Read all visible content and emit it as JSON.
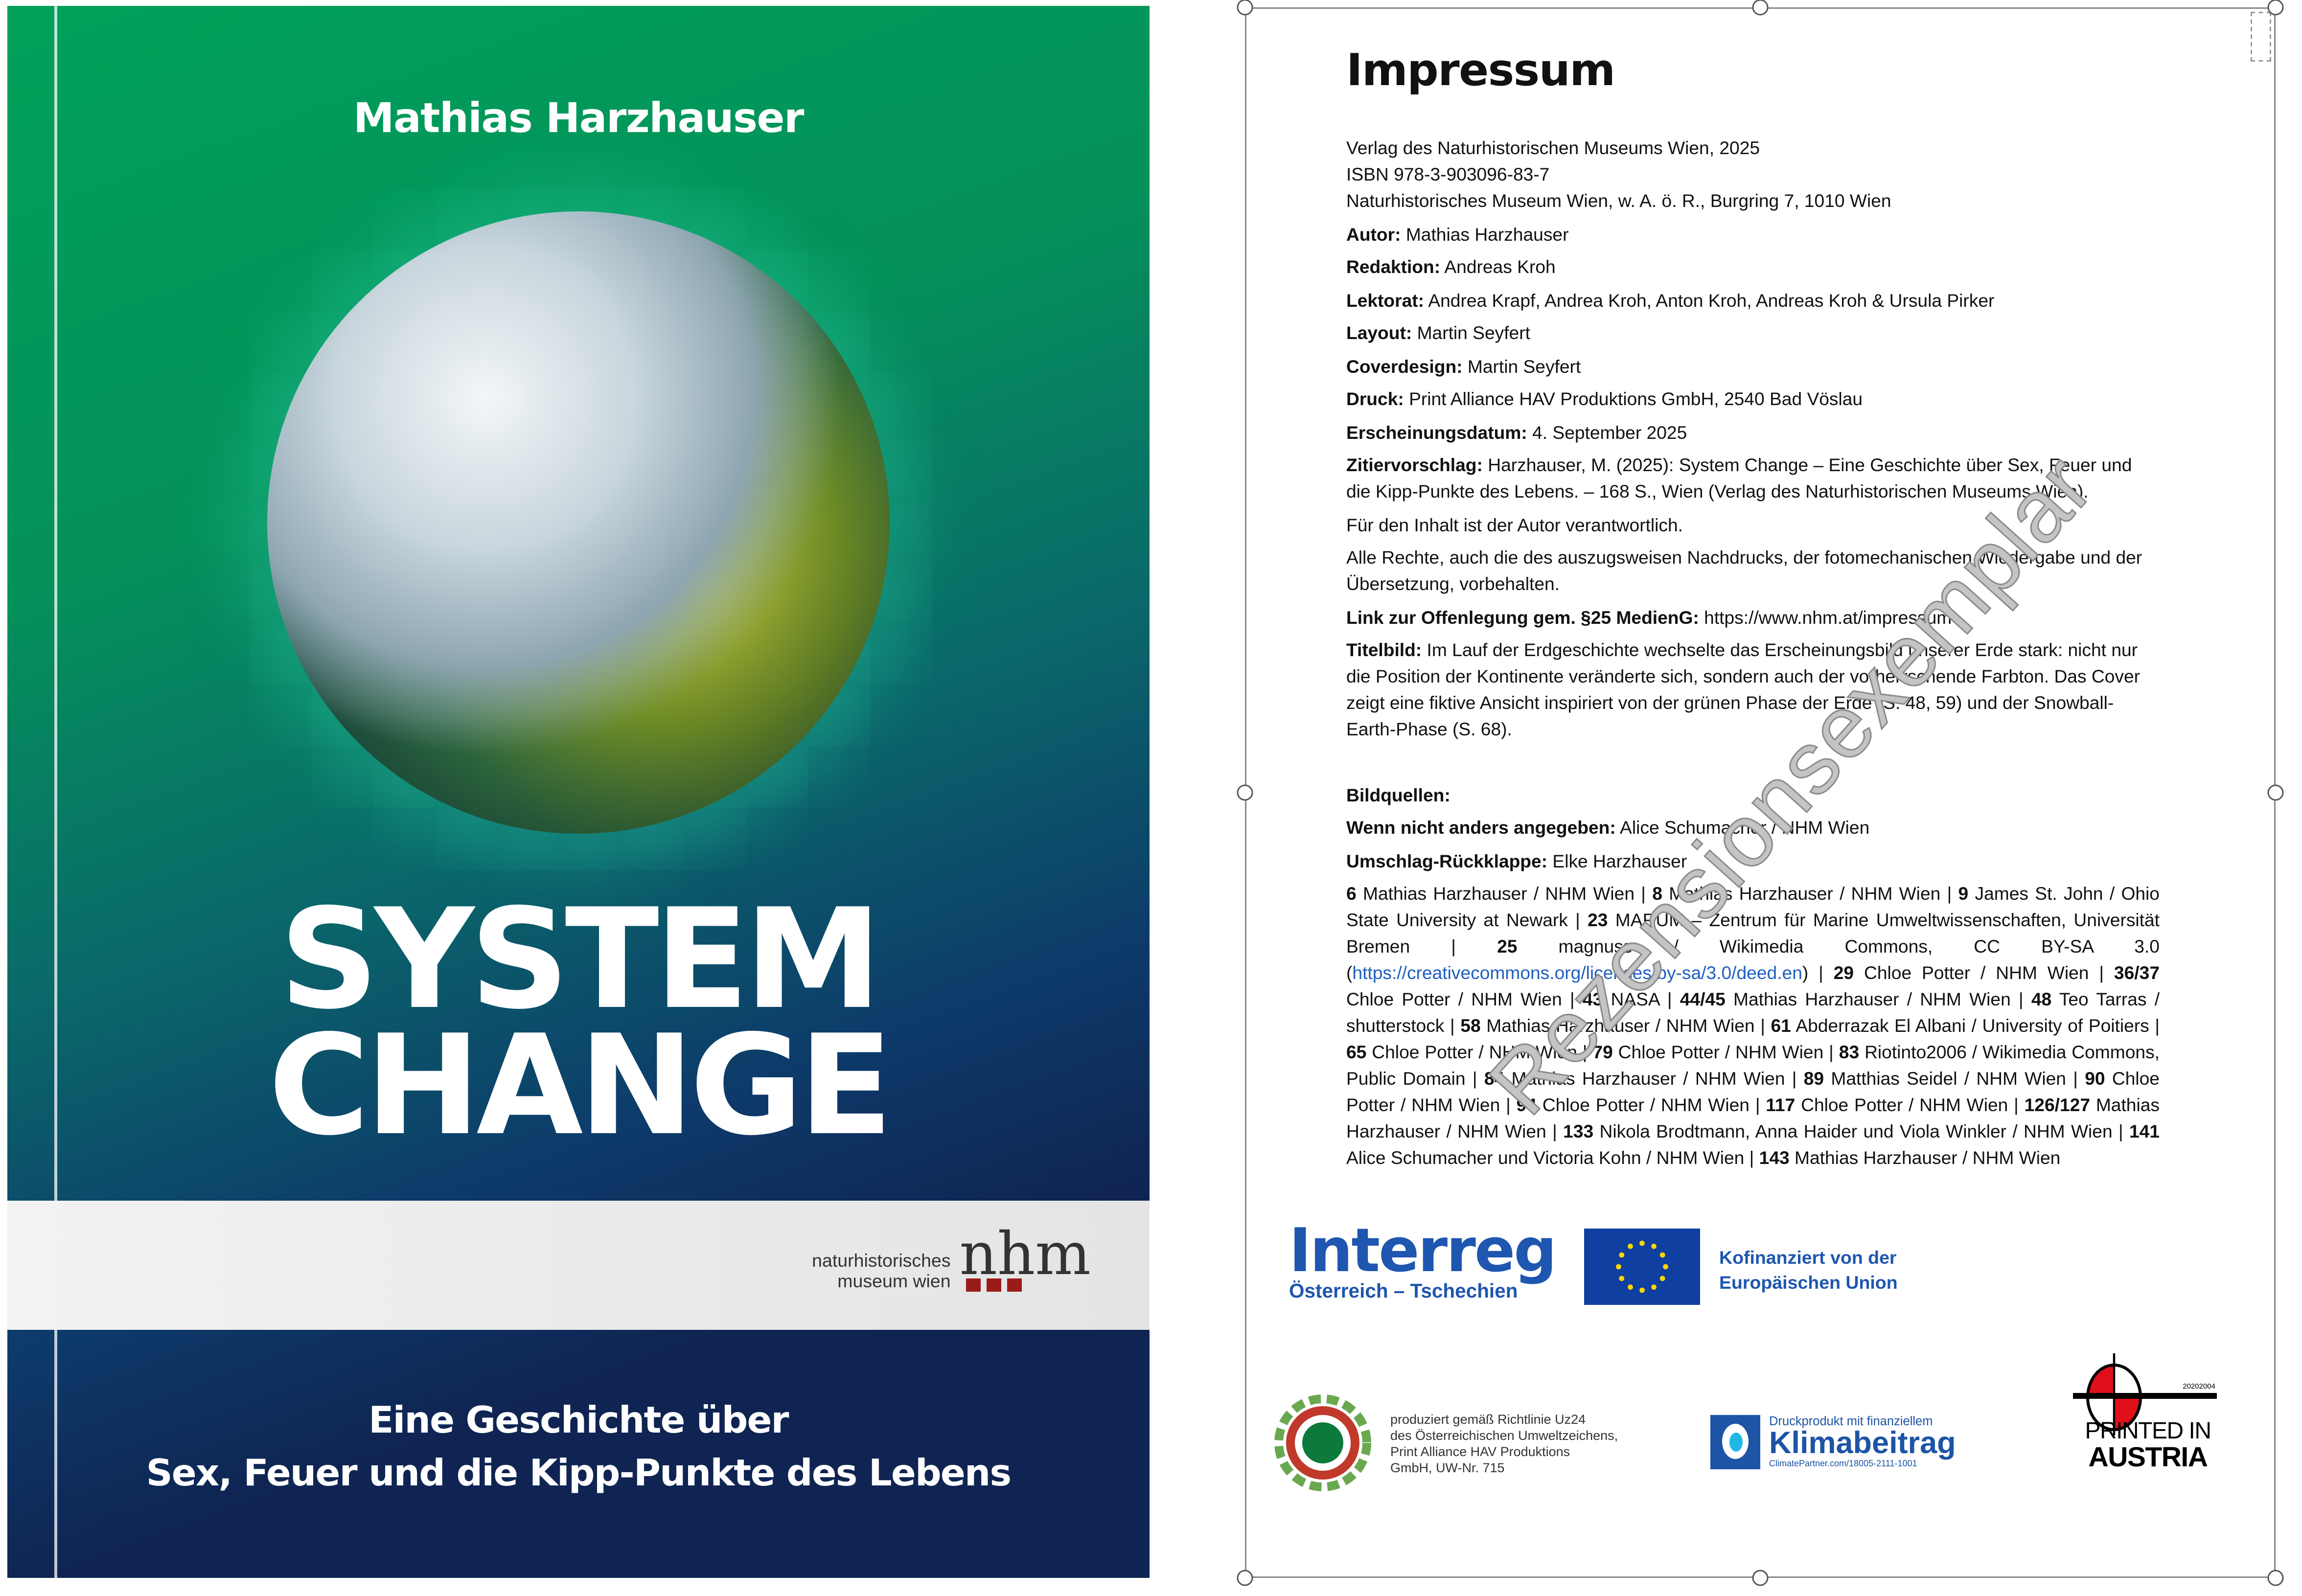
{
  "cover": {
    "author": "Mathias Harzhauser",
    "title_line1": "SYSTEM",
    "title_line2": "CHANGE",
    "publisher_logo_line1": "naturhistorisches",
    "publisher_logo_line2": "museum wien",
    "publisher_logo_mark": "nhm",
    "subtitle_line1": "Eine Geschichte über",
    "subtitle_line2": "Sex, Feuer und die Kipp-Punkte des Lebens",
    "colors": {
      "green": "#00a05a",
      "navy": "#0f2452"
    }
  },
  "impressum": {
    "heading": "Impressum",
    "publisher_lines": [
      "Verlag des Naturhistorischen Museums Wien, 2025",
      "ISBN 978-3-903096-83-7",
      "Naturhistorisches Museum Wien, w. A. ö. R., Burgring 7, 1010 Wien"
    ],
    "fields": [
      {
        "label": "Autor:",
        "value": " Mathias Harzhauser"
      },
      {
        "label": "Redaktion:",
        "value": " Andreas Kroh"
      },
      {
        "label": "Lektorat:",
        "value": " Andrea Krapf, Andrea Kroh, Anton Kroh, Andreas Kroh & Ursula Pirker"
      },
      {
        "label": "Layout:",
        "value": " Martin Seyfert"
      },
      {
        "label": "Coverdesign:",
        "value": " Martin Seyfert"
      },
      {
        "label": "Druck:",
        "value": " Print Alliance HAV Produktions GmbH, 2540 Bad Vöslau"
      },
      {
        "label": "Erscheinungsdatum:",
        "value": " 4. September 2025"
      },
      {
        "label": "Zitiervorschlag:",
        "value": " Harzhauser, M. (2025): System Change – Eine Geschichte über Sex, Feuer und die Kipp-Punkte des Lebens. – 168 S., Wien (Verlag des Naturhistorischen Museums Wien)."
      }
    ],
    "responsibility": "Für den Inhalt ist der Autor verantwortlich.",
    "rights": "Alle Rechte, auch die des auszugsweisen Nachdrucks, der fotomechanischen Wiedergabe und der Übersetzung, vorbehalten.",
    "disclosure": {
      "label": "Link zur Offenlegung gem. §25 MedienG:",
      "value": " https://www.nhm.at/impressum"
    },
    "cover_image": {
      "label": "Titelbild:",
      "value": " Im Lauf der Erdgeschichte wechselte das Erscheinungsbild unserer Erde stark: nicht nur die Position der Kontinente veränderte sich, sondern auch der vorherrschende Farbton. Das Cover zeigt eine fiktive Ansicht inspiriert von der grünen Phase der Erde (S. 48, 59) und der Snowball-Earth-Phase (S. 68)."
    },
    "image_sources_heading": "Bildquellen:",
    "default_source": {
      "label": "Wenn nicht anders angegeben:",
      "value": " Alice Schumacher / NHM Wien"
    },
    "back_flap": {
      "label": "Umschlag-Rückklappe:",
      "value": " Elke Harzhauser"
    },
    "credits": [
      {
        "num": "6",
        "text": " Mathias Harzhauser / NHM Wien"
      },
      {
        "num": "8",
        "text": " Mathias Harzhauser / NHM Wien"
      },
      {
        "num": "9",
        "text": " James St. John / Ohio State University at Newark"
      },
      {
        "num": "23",
        "text": " MARUM – Zentrum für Marine Umweltwissenschaften, Universität Bremen"
      },
      {
        "num": "25",
        "text": " magnuss / Wikimedia Commons, CC BY-SA 3.0 (",
        "link": "https://creativecommons.org/licenses/by-sa/3.0/deed.en",
        "after": ")"
      },
      {
        "num": "29",
        "text": " Chloe Potter / NHM Wien"
      },
      {
        "num": "36/37",
        "text": " Chloe Potter / NHM Wien"
      },
      {
        "num": "43",
        "text": " NASA"
      },
      {
        "num": "44/45",
        "text": " Mathias Harzhauser / NHM Wien"
      },
      {
        "num": "48",
        "text": " Teo Tarras / shutterstock"
      },
      {
        "num": "58",
        "text": " Mathias Harzhauser / NHM Wien"
      },
      {
        "num": "61",
        "text": " Abderrazak El Albani / University of Poitiers"
      },
      {
        "num": "65",
        "text": " Chloe Potter / NHM Wien"
      },
      {
        "num": "79",
        "text": " Chloe Potter / NHM Wien"
      },
      {
        "num": "83",
        "text": " Riotinto2006 / Wikimedia Commons, Public Domain"
      },
      {
        "num": "84",
        "text": " Mathias Harzhauser / NHM Wien"
      },
      {
        "num": "89",
        "text": " Matthias Seidel / NHM Wien"
      },
      {
        "num": "90",
        "text": " Chloe Potter / NHM Wien"
      },
      {
        "num": "94",
        "text": " Chloe Potter / NHM Wien"
      },
      {
        "num": "117",
        "text": " Chloe Potter / NHM Wien"
      },
      {
        "num": "126/127",
        "text": " Mathias Harzhauser / NHM Wien"
      },
      {
        "num": "133",
        "text": " Nikola Brodtmann, Anna Haider und Viola Winkler / NHM Wien"
      },
      {
        "num": "141",
        "text": " Alice Schumacher und Victoria Kohn / NHM Wien"
      },
      {
        "num": "143",
        "text": " Mathias Harzhauser / NHM Wien"
      }
    ],
    "credit_separator": " | ",
    "watermark": "Rezensionsexemplar",
    "link_color": "#1f5fbf"
  },
  "logos": {
    "interreg_name": "Interreg",
    "interreg_region": "Österreich – Tschechien",
    "eu_line1": "Kofinanziert von der",
    "eu_line2": "Europäischen Union",
    "umweltzeichen_lines": [
      "produziert gemäß Richtlinie Uz24",
      "des Österreichischen Umweltzeichens,",
      "Print Alliance HAV Produktions",
      "GmbH, UW-Nr. 715"
    ],
    "umweltzeichen_mark": "UMWELTZEICHEN",
    "klima_line1": "Druckprodukt mit finanziellem",
    "klima_line2": "Klimabeitrag",
    "klima_line3": "ClimatePartner.com/18005-2111-1001",
    "pia_number": "20202004",
    "pia_line1": "PRINTED IN",
    "pia_line2": "AUSTRIA",
    "colors": {
      "interreg_blue": "#1e56b0",
      "eu_blue": "#0f3fa0",
      "eu_star": "#ffd500"
    }
  }
}
